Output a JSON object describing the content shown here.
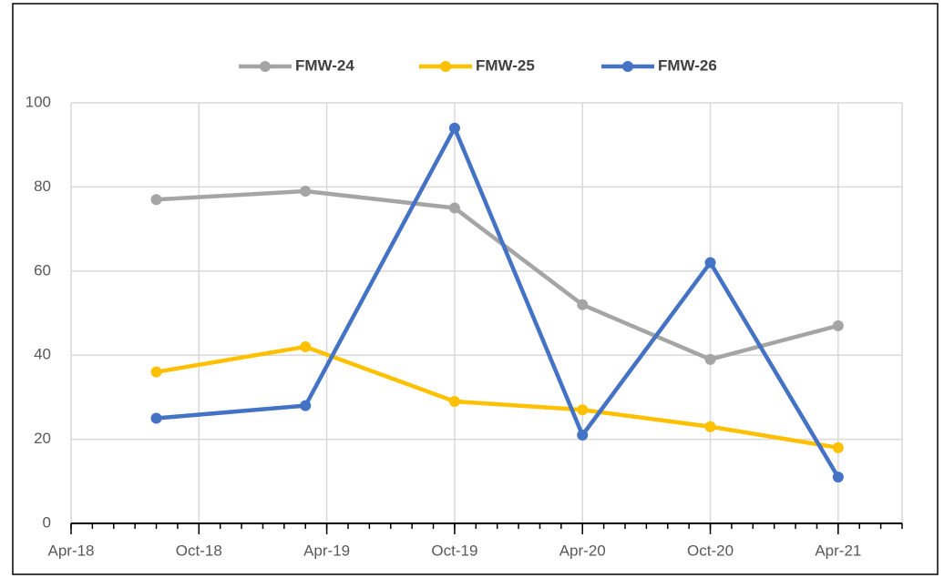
{
  "chart_data": {
    "type": "line",
    "x": [
      "2018-08",
      "2019-03",
      "2019-10",
      "2020-04",
      "2020-10",
      "2021-04"
    ],
    "series": [
      {
        "name": "FMW-24",
        "color": "#a5a5a5",
        "values": [
          77,
          79,
          75,
          52,
          39,
          47
        ]
      },
      {
        "name": "FMW-25",
        "color": "#ffc000",
        "values": [
          36,
          42,
          29,
          27,
          23,
          18
        ]
      },
      {
        "name": "FMW-26",
        "color": "#4472c4",
        "values": [
          25,
          28,
          94,
          21,
          62,
          11
        ]
      }
    ],
    "xlim": [
      "2018-04",
      "2021-07"
    ],
    "xticks": [
      {
        "value": "2018-04",
        "label": "Apr-18"
      },
      {
        "value": "2018-10",
        "label": "Oct-18"
      },
      {
        "value": "2019-04",
        "label": "Apr-19"
      },
      {
        "value": "2019-10",
        "label": "Oct-19"
      },
      {
        "value": "2020-04",
        "label": "Apr-20"
      },
      {
        "value": "2020-10",
        "label": "Oct-20"
      },
      {
        "value": "2021-04",
        "label": "Apr-21"
      }
    ],
    "ylim": [
      0,
      100
    ],
    "yticks": [
      0,
      20,
      40,
      60,
      80,
      100
    ],
    "grid": true,
    "legend": "top"
  }
}
